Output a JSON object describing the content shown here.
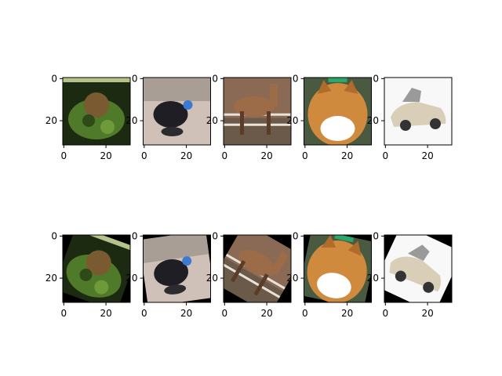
{
  "figure": {
    "rows": [
      {
        "panels": [
          {
            "subject": "frog",
            "bg": "#1d2a12",
            "fg": "#4f7a2a",
            "accent": "#7a5a30",
            "rotation": 0
          },
          {
            "subject": "bird",
            "bg": "#cfc0b8",
            "fg": "#1e1e24",
            "accent": "#3a7ad0",
            "rotation": 0
          },
          {
            "subject": "horse",
            "bg": "#8a6a55",
            "fg": "#9c6c48",
            "accent": "#e8e2da",
            "rotation": 0
          },
          {
            "subject": "cat",
            "bg": "#4a5a40",
            "fg": "#cf8a3e",
            "accent": "#ffffff",
            "rotation": 0
          },
          {
            "subject": "car",
            "bg": "#f8f8f8",
            "fg": "#d9cfb8",
            "accent": "#333333",
            "rotation": 0
          }
        ]
      },
      {
        "panels": [
          {
            "subject": "frog",
            "bg": "#1d2a12",
            "fg": "#4f7a2a",
            "accent": "#7a5a30",
            "rotation": 20
          },
          {
            "subject": "bird",
            "bg": "#cfc0b8",
            "fg": "#1e1e24",
            "accent": "#3a7ad0",
            "rotation": -8
          },
          {
            "subject": "horse",
            "bg": "#8a6a55",
            "fg": "#9c6c48",
            "accent": "#e8e2da",
            "rotation": 30
          },
          {
            "subject": "cat",
            "bg": "#4a5a40",
            "fg": "#cf8a3e",
            "accent": "#ffffff",
            "rotation": 12
          },
          {
            "subject": "car",
            "bg": "#f8f8f8",
            "fg": "#d9cfb8",
            "accent": "#333333",
            "rotation": 25
          }
        ]
      }
    ],
    "axis": {
      "xticks": [
        "0",
        "20"
      ],
      "yticks": [
        "0",
        "20"
      ],
      "tick_values": [
        0,
        20
      ],
      "range": [
        -0.5,
        31.5
      ]
    }
  }
}
